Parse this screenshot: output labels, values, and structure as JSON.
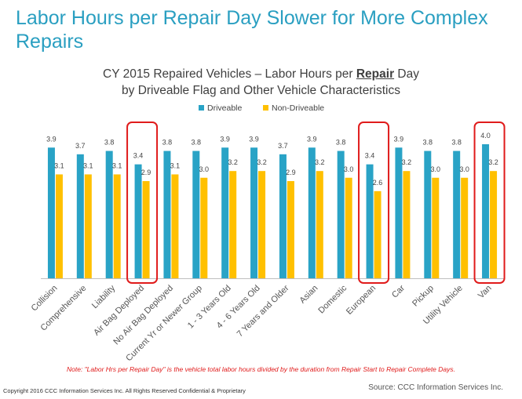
{
  "slide_title": "Labor Hours per Repair Day Slower for More Complex Repairs",
  "chart_data": {
    "type": "bar",
    "title_line1_prefix": "CY 2015 Repaired Vehicles – Labor Hours per ",
    "title_line1_emphasis": "Repair",
    "title_line1_suffix": " Day",
    "title_line2": "by Driveable Flag and Other Vehicle Characteristics",
    "categories": [
      "Collision",
      "Comprehensive",
      "Liability",
      "Air Bag Deployed",
      "No Air Bag Deployed",
      "Current Yr or Newer Group",
      "1 - 3 Years Old",
      "4 - 6 Years Old",
      "7 Years and Older",
      "Asian",
      "Domestic",
      "European",
      "Car",
      "Pickup",
      "Utility Vehicle",
      "Van"
    ],
    "series": [
      {
        "name": "Driveable",
        "color": "#29a3c6",
        "values": [
          3.9,
          3.7,
          3.8,
          3.4,
          3.8,
          3.8,
          3.9,
          3.9,
          3.7,
          3.9,
          3.8,
          3.4,
          3.9,
          3.8,
          3.8,
          4.0
        ]
      },
      {
        "name": "Non-Driveable",
        "color": "#ffc000",
        "values": [
          3.1,
          3.1,
          3.1,
          2.9,
          3.1,
          3.0,
          3.2,
          3.2,
          2.9,
          3.2,
          3.0,
          2.6,
          3.2,
          3.0,
          3.0,
          3.2
        ]
      }
    ],
    "ylim": [
      0,
      4.4
    ],
    "highlighted_categories": [
      "Air Bag Deployed",
      "European",
      "Van"
    ],
    "highlight_color": "#e01b1b",
    "legend_position": "top-center",
    "xlabel": "",
    "ylabel": ""
  },
  "footnote": "Note:  \"Labor Hrs per Repair Day\" is the vehicle total labor hours divided by the duration from Repair Start to Repair Complete Days.",
  "copyright": "Copyright 2016 CCC Information Services Inc.  All Rights Reserved Confidential & Proprietary",
  "source": "Source: CCC Information Services Inc."
}
